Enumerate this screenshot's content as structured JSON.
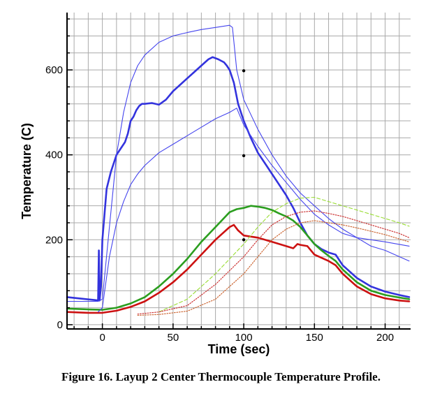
{
  "caption": "Figure 16.   Layup 2 Center Thermocouple Temperature Profile.",
  "chart_data": {
    "type": "line",
    "title": "",
    "xlabel": "Time (sec)",
    "ylabel": "Temperature (C)",
    "xlim": [
      -25,
      218
    ],
    "ylim": [
      -10,
      735
    ],
    "xticks": [
      0,
      50,
      100,
      150,
      200
    ],
    "yticks": [
      0,
      200,
      400,
      600
    ],
    "grid": true,
    "series": [
      {
        "color": "#3333dd",
        "style": "solid-thick",
        "x": [
          -25,
          -5,
          -3,
          -2.5,
          -2,
          -1,
          0,
          3,
          6,
          10,
          13,
          16,
          18,
          20,
          22,
          24,
          26,
          28,
          30,
          35,
          40,
          45,
          50,
          55,
          60,
          65,
          70,
          75,
          78,
          82,
          86,
          88,
          90,
          93,
          96,
          100,
          105,
          110,
          115,
          120,
          125,
          130,
          135,
          140,
          145,
          150,
          155,
          160,
          165,
          170,
          180,
          190,
          200,
          210,
          217
        ],
        "y": [
          65,
          58,
          57,
          175,
          57,
          90,
          200,
          320,
          360,
          400,
          415,
          430,
          450,
          480,
          490,
          505,
          515,
          520,
          520,
          522,
          518,
          530,
          550,
          565,
          580,
          595,
          610,
          625,
          630,
          625,
          618,
          610,
          600,
          570,
          520,
          480,
          440,
          405,
          380,
          355,
          330,
          305,
          275,
          240,
          210,
          190,
          178,
          170,
          165,
          140,
          110,
          90,
          78,
          70,
          65
        ]
      },
      {
        "color": "#2b9e1f",
        "style": "solid-thick",
        "x": [
          -25,
          -10,
          0,
          10,
          20,
          30,
          40,
          50,
          60,
          70,
          80,
          90,
          95,
          100,
          105,
          110,
          115,
          120,
          125,
          130,
          135,
          140,
          145,
          150,
          155,
          160,
          165,
          170,
          180,
          190,
          200,
          210,
          217
        ],
        "y": [
          38,
          36,
          35,
          40,
          50,
          65,
          90,
          120,
          155,
          195,
          230,
          265,
          272,
          275,
          280,
          278,
          275,
          270,
          262,
          255,
          245,
          230,
          210,
          190,
          175,
          162,
          150,
          130,
          100,
          80,
          70,
          64,
          60
        ]
      },
      {
        "color": "#cc1111",
        "style": "solid-thick",
        "x": [
          -25,
          -10,
          0,
          10,
          20,
          30,
          40,
          50,
          60,
          70,
          80,
          90,
          93,
          96,
          100,
          110,
          120,
          130,
          135,
          138,
          140,
          145,
          150,
          160,
          165,
          170,
          180,
          190,
          200,
          210,
          217
        ],
        "y": [
          30,
          28,
          28,
          33,
          42,
          55,
          75,
          100,
          130,
          165,
          200,
          230,
          235,
          222,
          210,
          205,
          195,
          185,
          180,
          190,
          188,
          185,
          165,
          150,
          140,
          120,
          90,
          72,
          62,
          57,
          55
        ]
      },
      {
        "color": "#4444ee",
        "style": "solid-thin",
        "x": [
          -25,
          -5,
          -3,
          0,
          5,
          10,
          15,
          20,
          25,
          30,
          40,
          50,
          60,
          70,
          80,
          90,
          92,
          95,
          100,
          110,
          120,
          130,
          140,
          150,
          160,
          170,
          180,
          190,
          200,
          217
        ],
        "y": [
          55,
          55,
          55,
          60,
          230,
          400,
          500,
          570,
          610,
          635,
          665,
          680,
          688,
          695,
          700,
          705,
          700,
          600,
          530,
          460,
          400,
          350,
          310,
          280,
          250,
          225,
          205,
          185,
          175,
          150
        ]
      },
      {
        "color": "#4444ee",
        "style": "solid-thin",
        "x": [
          -3,
          0,
          5,
          10,
          15,
          20,
          25,
          30,
          40,
          50,
          60,
          70,
          80,
          90,
          95,
          100,
          110,
          120,
          130,
          140,
          150,
          160,
          170,
          180,
          190,
          200,
          217
        ],
        "y": [
          30,
          40,
          160,
          240,
          290,
          330,
          355,
          375,
          405,
          425,
          445,
          465,
          485,
          500,
          510,
          470,
          420,
          375,
          335,
          295,
          260,
          235,
          215,
          205,
          200,
          195,
          185
        ]
      },
      {
        "color": "#99dd33",
        "style": "dashed",
        "x": [
          40,
          60,
          80,
          100,
          110,
          120,
          130,
          140,
          150,
          160,
          170,
          180,
          190,
          200,
          210,
          217
        ],
        "y": [
          30,
          60,
          120,
          190,
          230,
          265,
          285,
          298,
          300,
          290,
          280,
          270,
          260,
          250,
          240,
          232
        ]
      },
      {
        "color": "#cc3333",
        "style": "dotted",
        "x": [
          25,
          40,
          60,
          80,
          100,
          110,
          120,
          130,
          140,
          150,
          160,
          170,
          180,
          190,
          200,
          210,
          217
        ],
        "y": [
          25,
          30,
          45,
          95,
          160,
          200,
          235,
          255,
          265,
          268,
          262,
          255,
          245,
          235,
          225,
          215,
          205
        ]
      },
      {
        "color": "#cc6633",
        "style": "dotted",
        "x": [
          25,
          40,
          60,
          80,
          100,
          110,
          120,
          130,
          140,
          150,
          160,
          170,
          180,
          190,
          200,
          210,
          217
        ],
        "y": [
          22,
          24,
          32,
          60,
          120,
          160,
          200,
          225,
          240,
          245,
          240,
          235,
          228,
          220,
          212,
          202,
          195
        ]
      }
    ],
    "markers": [
      {
        "x": 100,
        "y": 598
      },
      {
        "x": 100,
        "y": 398
      },
      {
        "x": 100,
        "y": 200
      }
    ]
  }
}
